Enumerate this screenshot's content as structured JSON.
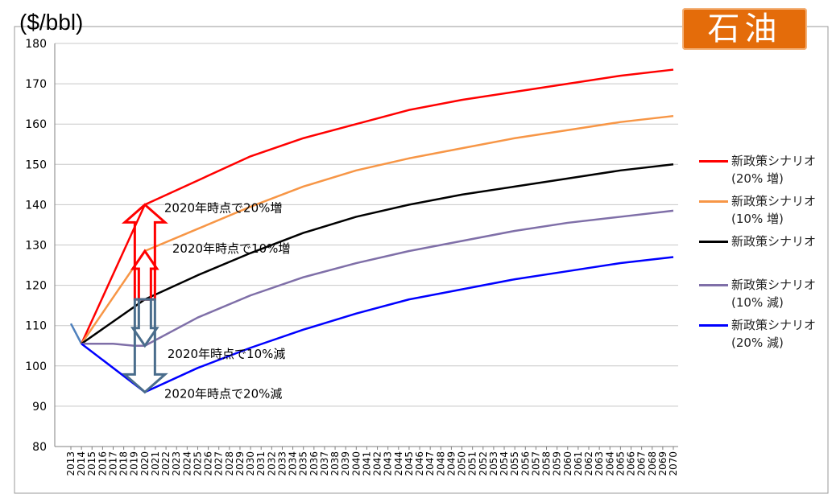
{
  "unit_label": "($/bbl)",
  "badge": "石油",
  "legend": [
    {
      "name": "新政策シナリオ",
      "sub": "(20% 増)",
      "color": "#ff0000"
    },
    {
      "name": "新政策シナリオ",
      "sub": "(10% 増)",
      "color": "#f79646"
    },
    {
      "name": "新政策シナリオ",
      "sub": "",
      "color": "#000000"
    },
    {
      "name": "新政策シナリオ",
      "sub": "(10% 減)",
      "color": "#7f6fa8"
    },
    {
      "name": "新政策シナリオ",
      "sub": "(20% 減)",
      "color": "#0000ff"
    }
  ],
  "chart_data": {
    "type": "line",
    "title": "",
    "xlabel": "",
    "ylabel": "($/bbl)",
    "ylim": [
      80,
      180
    ],
    "yticks": [
      80,
      90,
      100,
      110,
      120,
      130,
      140,
      150,
      160,
      170,
      180
    ],
    "x": [
      2013,
      2014,
      2015,
      2016,
      2017,
      2018,
      2019,
      2020,
      2021,
      2022,
      2023,
      2024,
      2025,
      2026,
      2027,
      2028,
      2029,
      2030,
      2031,
      2032,
      2033,
      2034,
      2035,
      2036,
      2037,
      2038,
      2039,
      2040,
      2041,
      2042,
      2043,
      2044,
      2045,
      2046,
      2047,
      2048,
      2049,
      2050,
      2051,
      2052,
      2053,
      2054,
      2055,
      2056,
      2057,
      2058,
      2059,
      2060,
      2061,
      2062,
      2063,
      2064,
      2065,
      2066,
      2067,
      2068,
      2069,
      2070
    ],
    "grid": true,
    "legend_position": "right",
    "series": [
      {
        "name": "新政策シナリオ (20% 増)",
        "color": "#ff0000",
        "points": [
          [
            2014,
            105.5
          ],
          [
            2020,
            140
          ],
          [
            2025,
            146
          ],
          [
            2030,
            152
          ],
          [
            2035,
            156.5
          ],
          [
            2040,
            160
          ],
          [
            2045,
            163.5
          ],
          [
            2050,
            166
          ],
          [
            2055,
            168
          ],
          [
            2060,
            170
          ],
          [
            2065,
            172
          ],
          [
            2070,
            173.5
          ]
        ]
      },
      {
        "name": "新政策シナリオ (10% 増)",
        "color": "#f79646",
        "points": [
          [
            2014,
            105.5
          ],
          [
            2020,
            128.5
          ],
          [
            2025,
            134
          ],
          [
            2030,
            139.5
          ],
          [
            2035,
            144.5
          ],
          [
            2040,
            148.5
          ],
          [
            2045,
            151.5
          ],
          [
            2050,
            154
          ],
          [
            2055,
            156.5
          ],
          [
            2060,
            158.5
          ],
          [
            2065,
            160.5
          ],
          [
            2070,
            162
          ]
        ]
      },
      {
        "name": "新政策シナリオ",
        "color": "#000000",
        "points": [
          [
            2014,
            105.5
          ],
          [
            2020,
            116.5
          ],
          [
            2025,
            122.5
          ],
          [
            2030,
            128
          ],
          [
            2035,
            133
          ],
          [
            2040,
            137
          ],
          [
            2045,
            140
          ],
          [
            2050,
            142.5
          ],
          [
            2055,
            144.5
          ],
          [
            2060,
            146.5
          ],
          [
            2065,
            148.5
          ],
          [
            2070,
            150
          ]
        ]
      },
      {
        "name": "新政策シナリオ (10% 減)",
        "color": "#7f6fa8",
        "points": [
          [
            2014,
            105.5
          ],
          [
            2017,
            105.5
          ],
          [
            2019,
            105
          ],
          [
            2020,
            105
          ],
          [
            2025,
            112
          ],
          [
            2030,
            117.5
          ],
          [
            2035,
            122
          ],
          [
            2040,
            125.5
          ],
          [
            2045,
            128.5
          ],
          [
            2050,
            131
          ],
          [
            2055,
            133.5
          ],
          [
            2060,
            135.5
          ],
          [
            2065,
            137
          ],
          [
            2070,
            138.5
          ]
        ]
      },
      {
        "name": "新政策シナリオ (20% 減)",
        "color": "#0000ff",
        "points": [
          [
            2014,
            105.5
          ],
          [
            2020,
            93.5
          ],
          [
            2025,
            99.5
          ],
          [
            2030,
            104.5
          ],
          [
            2035,
            109
          ],
          [
            2040,
            113
          ],
          [
            2045,
            116.5
          ],
          [
            2050,
            119
          ],
          [
            2055,
            121.5
          ],
          [
            2060,
            123.5
          ],
          [
            2065,
            125.5
          ],
          [
            2070,
            127
          ]
        ]
      }
    ],
    "history": {
      "color": "#4f81bd",
      "points": [
        [
          2013,
          110.5
        ],
        [
          2014,
          105.5
        ]
      ]
    },
    "annotations": [
      {
        "text": "2020年時点で20%増",
        "x": 2020,
        "y": 140
      },
      {
        "text": "2020年時点で10%増",
        "x": 2020,
        "y": 128.5
      },
      {
        "text": "2020年時点で10%減",
        "x": 2020,
        "y": 105
      },
      {
        "text": "2020年時点で20%減",
        "x": 2020,
        "y": 93.5
      }
    ]
  }
}
